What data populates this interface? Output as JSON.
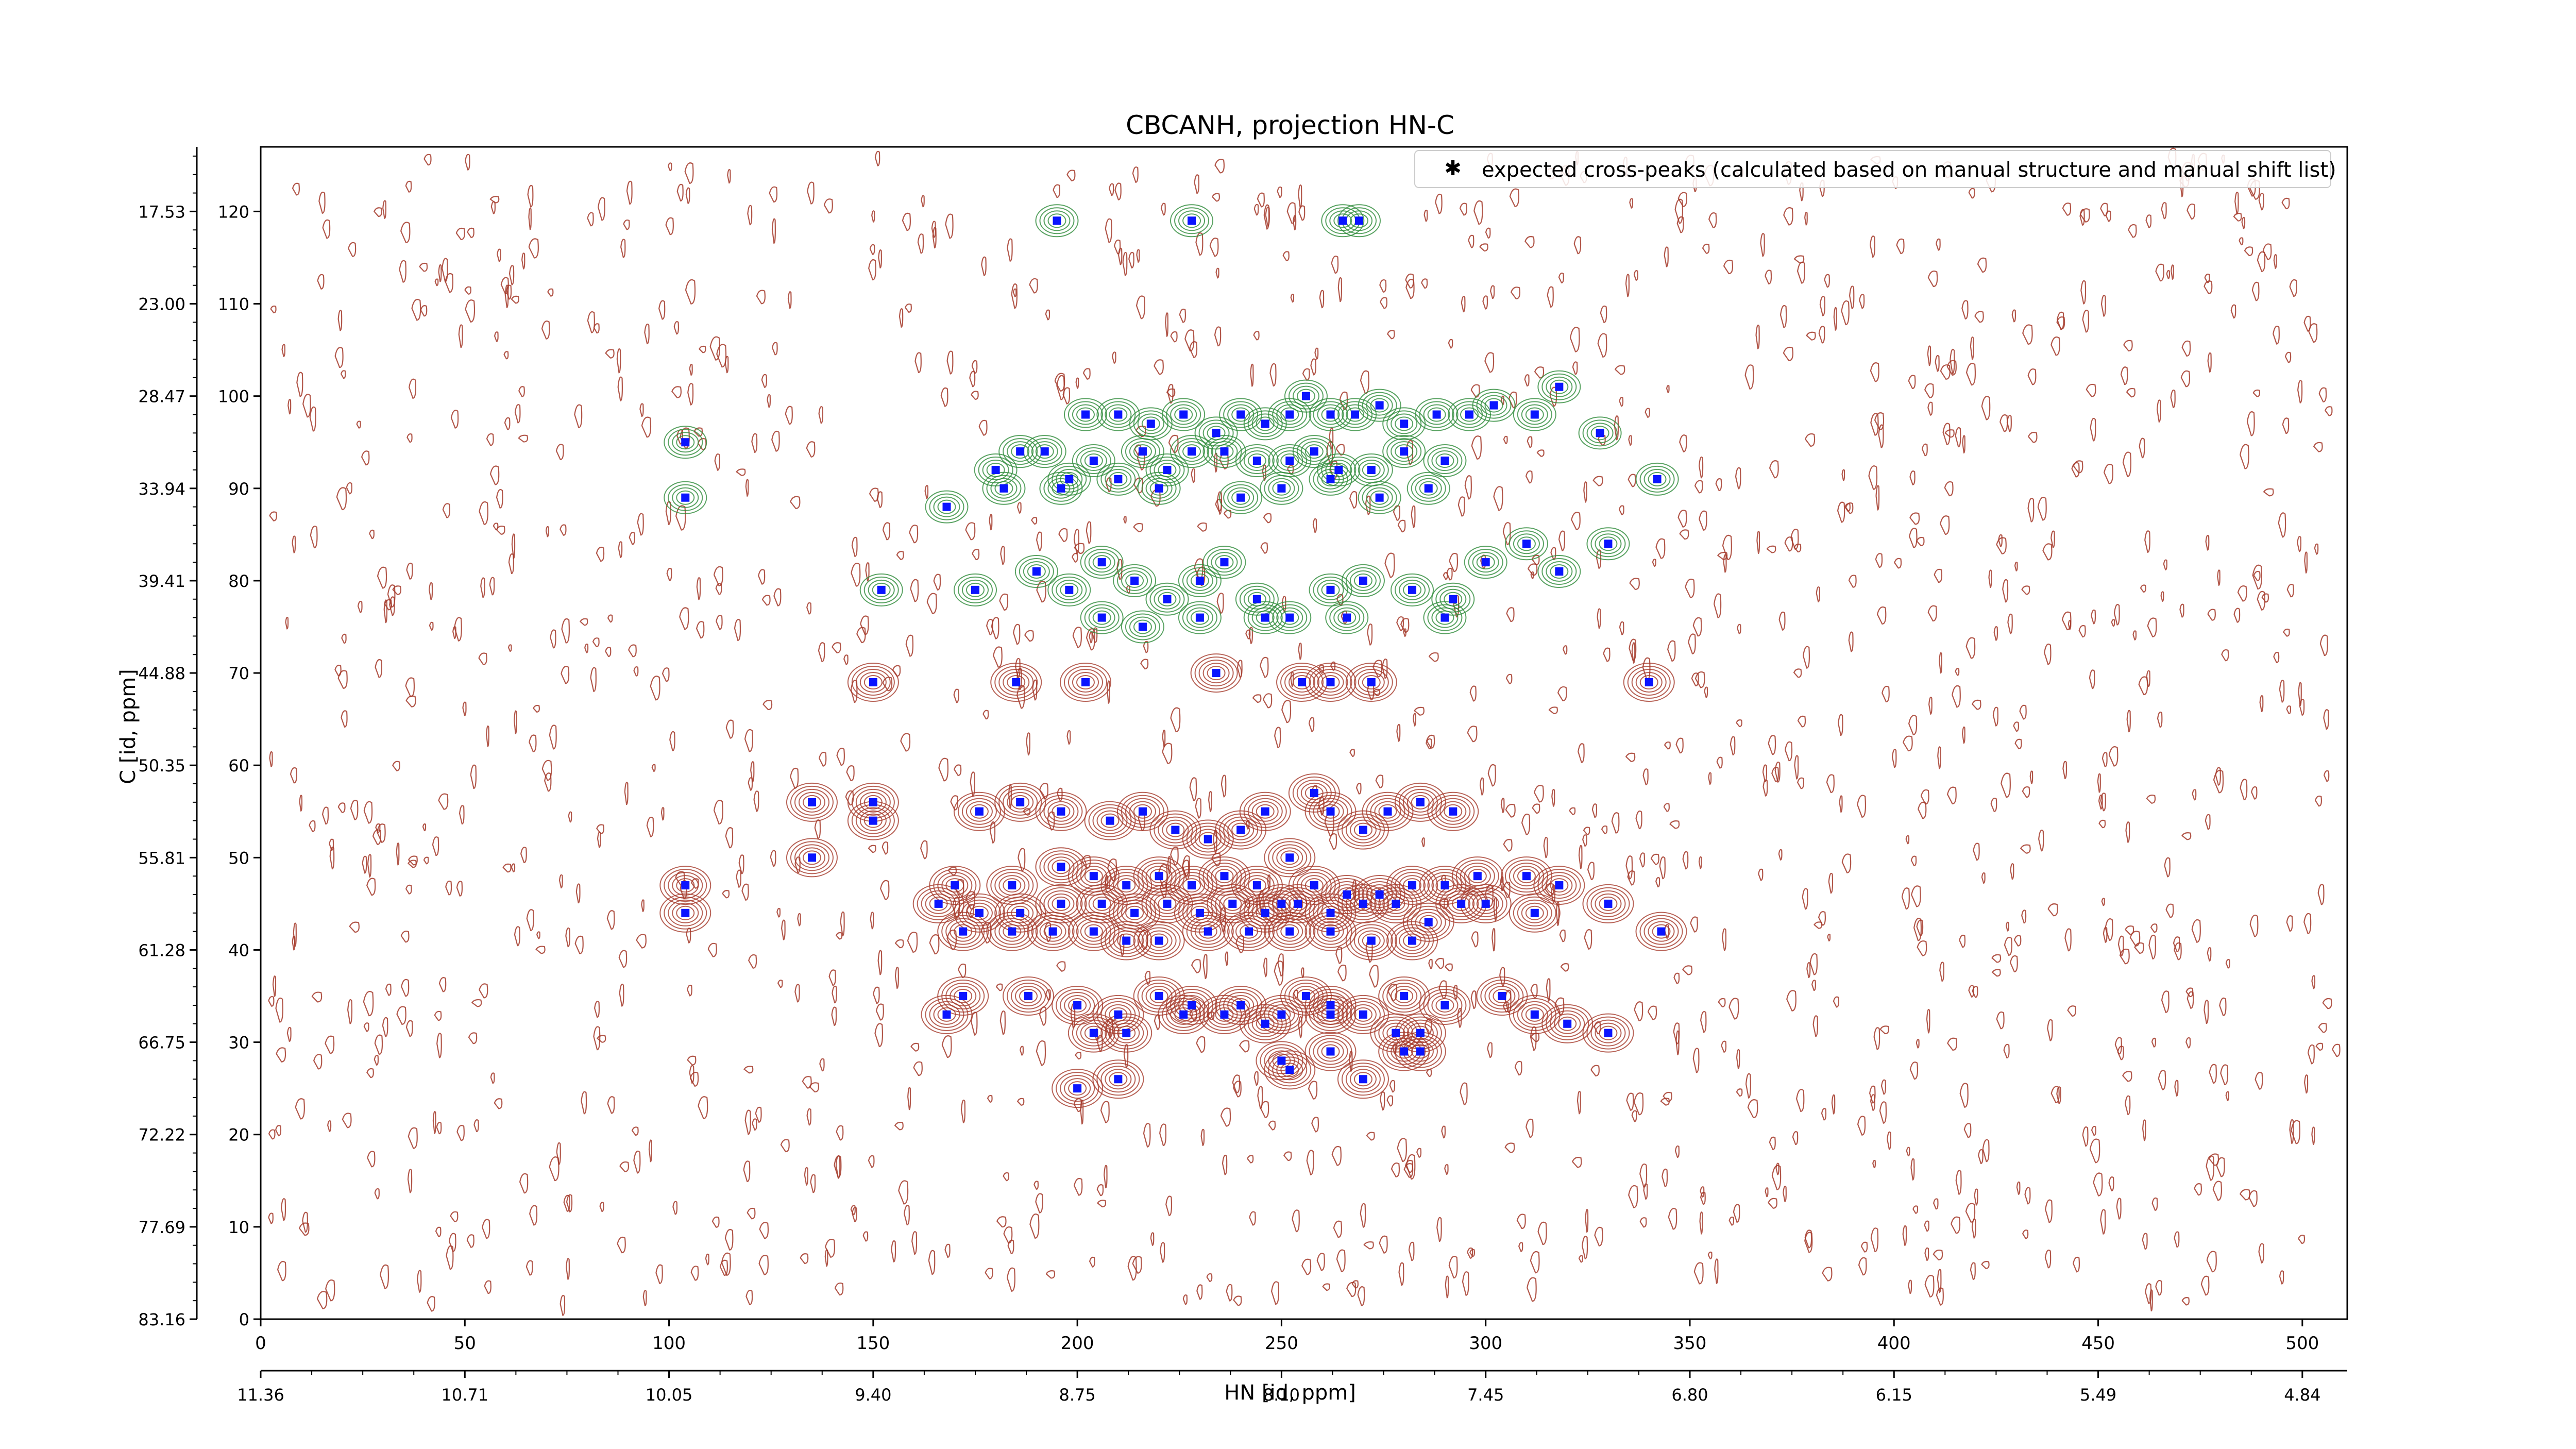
{
  "chart_data": {
    "type": "scatter",
    "title": "CBCANH, projection HN-C",
    "xlabel": "HN [id, ppm]",
    "ylabel": "C [id, ppm]",
    "xlim": [
      0,
      511
    ],
    "ylim": [
      0,
      127
    ],
    "x_ticks": [
      0,
      50,
      100,
      150,
      200,
      250,
      300,
      350,
      400,
      450,
      500
    ],
    "y_ticks": [
      0,
      10,
      20,
      30,
      40,
      50,
      60,
      70,
      80,
      90,
      100,
      110,
      120
    ],
    "secondary_x_ticks": [
      "11.36",
      "10.71",
      "10.05",
      "9.40",
      "8.75",
      "8.10",
      "7.45",
      "6.80",
      "6.15",
      "5.49",
      "4.84"
    ],
    "secondary_y_ticks": [
      "83.16",
      "77.69",
      "72.22",
      "66.75",
      "61.28",
      "55.81",
      "50.35",
      "44.88",
      "39.41",
      "33.94",
      "28.47",
      "23.00",
      "17.53"
    ],
    "legend": {
      "label": "expected cross-peaks (calculated based on manual structure and manual shift list)",
      "position": "top-right"
    },
    "colors": {
      "marker": "#0a14ff",
      "positive_contour": "#2e8b3a",
      "negative_contour": "#a53a2a"
    },
    "series": [
      {
        "name": "expected cross-peaks (calculated based on manual structure and manual shift list)",
        "points": [
          [
            195,
            119
          ],
          [
            228,
            119
          ],
          [
            265,
            119
          ],
          [
            269,
            119
          ],
          [
            202,
            98
          ],
          [
            210,
            98
          ],
          [
            218,
            97
          ],
          [
            226,
            98
          ],
          [
            234,
            96
          ],
          [
            240,
            98
          ],
          [
            246,
            97
          ],
          [
            252,
            98
          ],
          [
            256,
            100
          ],
          [
            262,
            98
          ],
          [
            268,
            98
          ],
          [
            274,
            99
          ],
          [
            280,
            97
          ],
          [
            288,
            98
          ],
          [
            296,
            98
          ],
          [
            302,
            99
          ],
          [
            312,
            98
          ],
          [
            318,
            101
          ],
          [
            328,
            96
          ],
          [
            180,
            92
          ],
          [
            186,
            94
          ],
          [
            192,
            94
          ],
          [
            198,
            91
          ],
          [
            204,
            93
          ],
          [
            210,
            91
          ],
          [
            216,
            94
          ],
          [
            222,
            92
          ],
          [
            228,
            94
          ],
          [
            236,
            94
          ],
          [
            244,
            93
          ],
          [
            252,
            93
          ],
          [
            258,
            94
          ],
          [
            264,
            92
          ],
          [
            272,
            92
          ],
          [
            280,
            94
          ],
          [
            290,
            93
          ],
          [
            104,
            95
          ],
          [
            104,
            89
          ],
          [
            168,
            88
          ],
          [
            182,
            90
          ],
          [
            196,
            90
          ],
          [
            220,
            90
          ],
          [
            240,
            89
          ],
          [
            250,
            90
          ],
          [
            262,
            91
          ],
          [
            274,
            89
          ],
          [
            286,
            90
          ],
          [
            342,
            91
          ],
          [
            175,
            79
          ],
          [
            190,
            81
          ],
          [
            198,
            79
          ],
          [
            206,
            82
          ],
          [
            214,
            80
          ],
          [
            222,
            78
          ],
          [
            230,
            80
          ],
          [
            236,
            82
          ],
          [
            244,
            78
          ],
          [
            252,
            76
          ],
          [
            262,
            79
          ],
          [
            270,
            80
          ],
          [
            282,
            79
          ],
          [
            292,
            78
          ],
          [
            300,
            82
          ],
          [
            310,
            84
          ],
          [
            318,
            81
          ],
          [
            330,
            84
          ],
          [
            152,
            79
          ],
          [
            206,
            76
          ],
          [
            216,
            75
          ],
          [
            230,
            76
          ],
          [
            246,
            76
          ],
          [
            266,
            76
          ],
          [
            290,
            76
          ],
          [
            150,
            69
          ],
          [
            185,
            69
          ],
          [
            202,
            69
          ],
          [
            234,
            70
          ],
          [
            255,
            69
          ],
          [
            262,
            69
          ],
          [
            272,
            69
          ],
          [
            340,
            69
          ],
          [
            135,
            56
          ],
          [
            150,
            56
          ],
          [
            150,
            54
          ],
          [
            176,
            55
          ],
          [
            186,
            56
          ],
          [
            196,
            55
          ],
          [
            208,
            54
          ],
          [
            216,
            55
          ],
          [
            224,
            53
          ],
          [
            232,
            52
          ],
          [
            240,
            53
          ],
          [
            246,
            55
          ],
          [
            252,
            50
          ],
          [
            258,
            57
          ],
          [
            262,
            55
          ],
          [
            270,
            53
          ],
          [
            276,
            55
          ],
          [
            284,
            56
          ],
          [
            292,
            55
          ],
          [
            135,
            50
          ],
          [
            170,
            47
          ],
          [
            184,
            47
          ],
          [
            196,
            49
          ],
          [
            204,
            48
          ],
          [
            212,
            47
          ],
          [
            220,
            48
          ],
          [
            228,
            47
          ],
          [
            236,
            48
          ],
          [
            244,
            47
          ],
          [
            250,
            45
          ],
          [
            258,
            47
          ],
          [
            266,
            46
          ],
          [
            274,
            46
          ],
          [
            282,
            47
          ],
          [
            290,
            47
          ],
          [
            298,
            48
          ],
          [
            310,
            48
          ],
          [
            318,
            47
          ],
          [
            104,
            47
          ],
          [
            104,
            44
          ],
          [
            166,
            45
          ],
          [
            176,
            44
          ],
          [
            186,
            44
          ],
          [
            196,
            45
          ],
          [
            206,
            45
          ],
          [
            214,
            44
          ],
          [
            222,
            45
          ],
          [
            230,
            44
          ],
          [
            238,
            45
          ],
          [
            246,
            44
          ],
          [
            254,
            45
          ],
          [
            262,
            44
          ],
          [
            270,
            45
          ],
          [
            278,
            45
          ],
          [
            286,
            43
          ],
          [
            294,
            45
          ],
          [
            300,
            45
          ],
          [
            312,
            44
          ],
          [
            330,
            45
          ],
          [
            343,
            42
          ],
          [
            172,
            42
          ],
          [
            184,
            42
          ],
          [
            194,
            42
          ],
          [
            204,
            42
          ],
          [
            212,
            41
          ],
          [
            220,
            41
          ],
          [
            232,
            42
          ],
          [
            242,
            42
          ],
          [
            252,
            42
          ],
          [
            262,
            42
          ],
          [
            272,
            41
          ],
          [
            282,
            41
          ],
          [
            172,
            35
          ],
          [
            188,
            35
          ],
          [
            200,
            34
          ],
          [
            210,
            33
          ],
          [
            220,
            35
          ],
          [
            228,
            34
          ],
          [
            240,
            34
          ],
          [
            250,
            33
          ],
          [
            256,
            35
          ],
          [
            262,
            34
          ],
          [
            270,
            33
          ],
          [
            280,
            35
          ],
          [
            290,
            34
          ],
          [
            304,
            35
          ],
          [
            312,
            33
          ],
          [
            320,
            32
          ],
          [
            330,
            31
          ],
          [
            168,
            33
          ],
          [
            204,
            31
          ],
          [
            212,
            31
          ],
          [
            226,
            33
          ],
          [
            236,
            33
          ],
          [
            246,
            32
          ],
          [
            262,
            33
          ],
          [
            278,
            31
          ],
          [
            284,
            31
          ],
          [
            250,
            28
          ],
          [
            262,
            29
          ],
          [
            280,
            29
          ],
          [
            284,
            29
          ],
          [
            200,
            25
          ],
          [
            210,
            26
          ],
          [
            252,
            27
          ],
          [
            270,
            26
          ]
        ]
      }
    ]
  }
}
